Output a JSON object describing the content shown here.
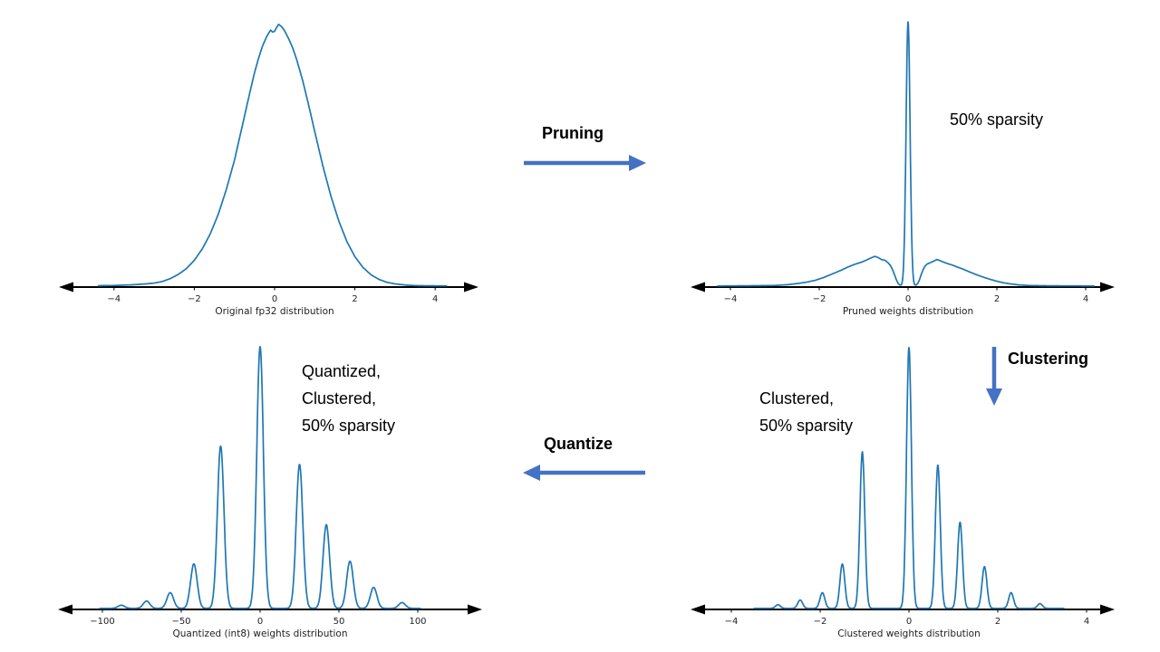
{
  "colors": {
    "curve": "#1f77b4",
    "axis": "#000000",
    "flow_arrow": "#4472c4",
    "text": "#000000"
  },
  "flow": {
    "pruning_label": "Pruning",
    "clustering_label": "Clustering",
    "quantize_label": "Quantize"
  },
  "annotations": {
    "pruned": "50% sparsity",
    "clustered": [
      "Clustered,",
      "50% sparsity"
    ],
    "quantized": [
      "Quantized,",
      "Clustered,",
      "50% sparsity"
    ]
  },
  "chart_data": [
    {
      "id": "original",
      "type": "line",
      "xlabel": "Original fp32 distribution",
      "x_ticks": [
        -4,
        -2,
        0,
        2,
        4
      ],
      "tick_labels": [
        "−4",
        "−2",
        "0",
        "2",
        "4"
      ],
      "xlim": [
        -5.3,
        5.1
      ],
      "ylim": [
        0,
        1.05
      ],
      "curve_xlim": [
        -4.4,
        4.3
      ],
      "spike_sigma": 0,
      "spikes": [],
      "curve_points": [
        [
          -4.4,
          0.001
        ],
        [
          -4.0,
          0.002
        ],
        [
          -3.6,
          0.004
        ],
        [
          -3.2,
          0.008
        ],
        [
          -3.0,
          0.011
        ],
        [
          -2.8,
          0.017
        ],
        [
          -2.6,
          0.028
        ],
        [
          -2.4,
          0.044
        ],
        [
          -2.2,
          0.066
        ],
        [
          -2.0,
          0.098
        ],
        [
          -1.8,
          0.142
        ],
        [
          -1.6,
          0.2
        ],
        [
          -1.4,
          0.275
        ],
        [
          -1.2,
          0.37
        ],
        [
          -1.0,
          0.48
        ],
        [
          -0.8,
          0.615
        ],
        [
          -0.6,
          0.75
        ],
        [
          -0.5,
          0.815
        ],
        [
          -0.4,
          0.87
        ],
        [
          -0.3,
          0.917
        ],
        [
          -0.2,
          0.952
        ],
        [
          -0.15,
          0.965
        ],
        [
          -0.1,
          0.978
        ],
        [
          -0.05,
          0.97
        ],
        [
          0.0,
          0.973
        ],
        [
          0.05,
          0.988
        ],
        [
          0.1,
          1.0
        ],
        [
          0.18,
          0.99
        ],
        [
          0.25,
          0.975
        ],
        [
          0.35,
          0.945
        ],
        [
          0.45,
          0.91
        ],
        [
          0.55,
          0.865
        ],
        [
          0.7,
          0.785
        ],
        [
          0.85,
          0.69
        ],
        [
          1.0,
          0.59
        ],
        [
          1.2,
          0.46
        ],
        [
          1.4,
          0.345
        ],
        [
          1.6,
          0.248
        ],
        [
          1.8,
          0.17
        ],
        [
          2.0,
          0.112
        ],
        [
          2.2,
          0.071
        ],
        [
          2.4,
          0.043
        ],
        [
          2.6,
          0.025
        ],
        [
          2.8,
          0.014
        ],
        [
          3.0,
          0.008
        ],
        [
          3.3,
          0.003
        ],
        [
          3.6,
          0.001
        ],
        [
          4.0,
          0.0005
        ],
        [
          4.3,
          0.0002
        ]
      ]
    },
    {
      "id": "pruned",
      "type": "line",
      "xlabel": "Pruned weights distribution",
      "x_ticks": [
        -4,
        -2,
        0,
        2,
        4
      ],
      "tick_labels": [
        "−4",
        "−2",
        "0",
        "2",
        "4"
      ],
      "xlim": [
        -5.3,
        5.1
      ],
      "ylim": [
        0,
        1.05
      ],
      "curve_xlim": [
        -4.3,
        4.2
      ],
      "spike_sigma": 0.045,
      "spikes": [
        {
          "x": 0,
          "h": 1.0
        }
      ],
      "curve_points": [
        [
          -4.3,
          0.0
        ],
        [
          -3.4,
          0.001
        ],
        [
          -3.0,
          0.002
        ],
        [
          -2.7,
          0.005
        ],
        [
          -2.5,
          0.009
        ],
        [
          -2.3,
          0.014
        ],
        [
          -2.1,
          0.021
        ],
        [
          -1.9,
          0.032
        ],
        [
          -1.7,
          0.046
        ],
        [
          -1.5,
          0.06
        ],
        [
          -1.35,
          0.072
        ],
        [
          -1.2,
          0.082
        ],
        [
          -1.05,
          0.09
        ],
        [
          -0.95,
          0.097
        ],
        [
          -0.85,
          0.105
        ],
        [
          -0.75,
          0.112
        ],
        [
          -0.68,
          0.108
        ],
        [
          -0.6,
          0.1
        ],
        [
          -0.52,
          0.097
        ],
        [
          -0.45,
          0.088
        ],
        [
          -0.4,
          0.078
        ],
        [
          -0.35,
          0.062
        ],
        [
          -0.3,
          0.04
        ],
        [
          -0.26,
          0.022
        ],
        [
          -0.22,
          0.009
        ],
        [
          -0.18,
          0.003
        ],
        [
          -0.14,
          0.001
        ],
        [
          0.14,
          0.001
        ],
        [
          0.18,
          0.003
        ],
        [
          0.22,
          0.01
        ],
        [
          0.26,
          0.025
        ],
        [
          0.3,
          0.045
        ],
        [
          0.34,
          0.062
        ],
        [
          0.38,
          0.075
        ],
        [
          0.43,
          0.083
        ],
        [
          0.5,
          0.088
        ],
        [
          0.58,
          0.094
        ],
        [
          0.65,
          0.1
        ],
        [
          0.72,
          0.096
        ],
        [
          0.8,
          0.09
        ],
        [
          0.9,
          0.084
        ],
        [
          1.0,
          0.079
        ],
        [
          1.1,
          0.072
        ],
        [
          1.25,
          0.063
        ],
        [
          1.4,
          0.052
        ],
        [
          1.55,
          0.042
        ],
        [
          1.7,
          0.033
        ],
        [
          1.85,
          0.025
        ],
        [
          2.0,
          0.018
        ],
        [
          2.15,
          0.012
        ],
        [
          2.3,
          0.008
        ],
        [
          2.5,
          0.004
        ],
        [
          2.7,
          0.002
        ],
        [
          3.0,
          0.001
        ],
        [
          3.5,
          0.0004
        ],
        [
          4.2,
          0.0
        ]
      ]
    },
    {
      "id": "clustered",
      "type": "line",
      "xlabel": "Clustered weights distribution",
      "x_ticks": [
        -4,
        -2,
        0,
        2,
        4
      ],
      "tick_labels": [
        "−4",
        "−2",
        "0",
        "2",
        "4"
      ],
      "xlim": [
        -5.3,
        5.1
      ],
      "ylim": [
        0,
        1.05
      ],
      "curve_xlim": [
        -3.5,
        3.5
      ],
      "spike_sigma": 0.055,
      "spikes": [
        {
          "x": -2.95,
          "h": 0.014
        },
        {
          "x": -2.45,
          "h": 0.032
        },
        {
          "x": -1.95,
          "h": 0.06
        },
        {
          "x": -1.5,
          "h": 0.17
        },
        {
          "x": -1.05,
          "h": 0.6
        },
        {
          "x": 0.0,
          "h": 1.0
        },
        {
          "x": 0.65,
          "h": 0.55
        },
        {
          "x": 1.15,
          "h": 0.33
        },
        {
          "x": 1.7,
          "h": 0.16
        },
        {
          "x": 2.3,
          "h": 0.06
        },
        {
          "x": 2.95,
          "h": 0.018
        }
      ],
      "curve_points": []
    },
    {
      "id": "quantized",
      "type": "line",
      "xlabel": "Quantized (int8) weights distribution",
      "x_ticks": [
        -100,
        -50,
        0,
        50,
        100
      ],
      "tick_labels": [
        "−100",
        "−50",
        "0",
        "50",
        "100"
      ],
      "xlim": [
        -130,
        140
      ],
      "ylim": [
        0,
        1.05
      ],
      "curve_xlim": [
        -102,
        102
      ],
      "spike_sigma": 2.1,
      "spikes": [
        {
          "x": -88,
          "h": 0.012
        },
        {
          "x": -72,
          "h": 0.028
        },
        {
          "x": -57,
          "h": 0.06
        },
        {
          "x": -42,
          "h": 0.17
        },
        {
          "x": -25,
          "h": 0.62
        },
        {
          "x": 0,
          "h": 1.0
        },
        {
          "x": 25,
          "h": 0.55
        },
        {
          "x": 42,
          "h": 0.32
        },
        {
          "x": 57,
          "h": 0.18
        },
        {
          "x": 72,
          "h": 0.08
        },
        {
          "x": 90,
          "h": 0.022
        }
      ],
      "curve_points": []
    }
  ]
}
